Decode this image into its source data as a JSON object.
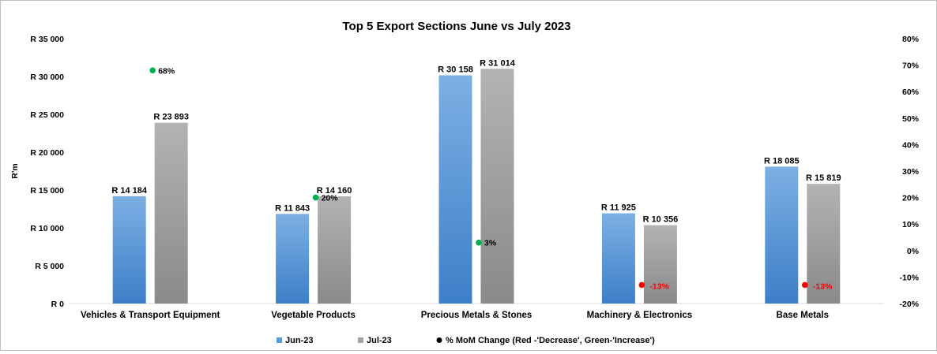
{
  "chart_data": {
    "type": "bar",
    "title": "Top 5 Export Sections  June vs July 2023",
    "ylabel": "R'm",
    "ylim": [
      0,
      35000
    ],
    "y2lim": [
      -0.2,
      0.8
    ],
    "y_ticks": [
      "R 0",
      "R 5 000",
      "R 10 000",
      "R 15 000",
      "R 20 000",
      "R 25 000",
      "R 30 000",
      "R 35 000"
    ],
    "y2_ticks": [
      "-20%",
      "-10%",
      "0%",
      "10%",
      "20%",
      "30%",
      "40%",
      "50%",
      "60%",
      "70%",
      "80%"
    ],
    "categories": [
      "Vehicles & Transport Equipment",
      "Vegetable Products",
      "Precious Metals & Stones",
      "Machinery & Electronics",
      "Base Metals"
    ],
    "series": [
      {
        "name": "Jun-23",
        "color": "#5b9bd5",
        "values": [
          14184,
          11843,
          30158,
          11925,
          18085
        ],
        "labels": [
          "R 14 184",
          "R 11 843",
          "R 30 158",
          "R 11 925",
          "R 18 085"
        ]
      },
      {
        "name": "Jul-23",
        "color": "#a5a5a5",
        "values": [
          23893,
          14160,
          31014,
          10356,
          15819
        ],
        "labels": [
          "R 23 893",
          "R 14 160",
          "R 31 014",
          "R 10 356",
          "R 15 819"
        ]
      }
    ],
    "mom_change": {
      "name": "% MoM Change (Red -'Decrease', Green-'Increase')",
      "values": [
        0.68,
        0.2,
        0.03,
        -0.13,
        -0.13
      ],
      "labels": [
        "68%",
        "20%",
        "3%",
        "-13%",
        "-13%"
      ],
      "colors": [
        "#00b050",
        "#00b050",
        "#00b050",
        "#ff0000",
        "#ff0000"
      ]
    },
    "legend": "bottom",
    "grid": false
  }
}
